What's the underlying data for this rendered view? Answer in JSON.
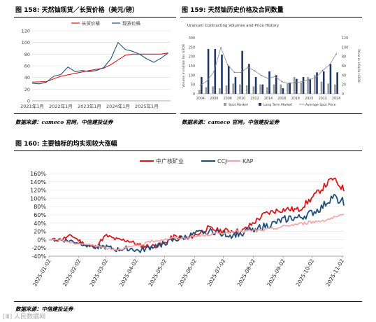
{
  "colors": {
    "red": "#d7191c",
    "darkblue": "#1f4e79",
    "pink": "#f4a3a8",
    "navy": "#1f3864",
    "gray": "#999999"
  },
  "fig158": {
    "title": "图 158: 天然铀现货／长贸价格（美元/磅）",
    "source": "数据来源：cameco 官网，中信建投证券"
  },
  "fig159": {
    "title": "图 159: 天然铀历史价格及合同数量",
    "source": "数据来源：cameco 官网，中信建投证券"
  },
  "fig160": {
    "title": "图 160: 主要铀标的均实现较大涨幅",
    "source": "数据来源：中信建投证券"
  },
  "watermark": "[Ⅲ] 人民数据网",
  "chart_data": [
    {
      "type": "line",
      "title": "",
      "series": [
        {
          "name": "长贸价格",
          "color": "#d7191c",
          "x": [
            "2021-01",
            "2021-07",
            "2022-01",
            "2022-07",
            "2023-01",
            "2023-07",
            "2023-10",
            "2024-01",
            "2024-04",
            "2024-07",
            "2024-10",
            "2025-01",
            "2025-04",
            "2025-07",
            "2025-10"
          ],
          "values": [
            32,
            33,
            42,
            47,
            52,
            56,
            62,
            70,
            78,
            80,
            80,
            80,
            80,
            80,
            82
          ]
        },
        {
          "name": "现货价格",
          "color": "#1f4e79",
          "x": [
            "2021-01",
            "2021-04",
            "2021-07",
            "2021-10",
            "2022-01",
            "2022-04",
            "2022-07",
            "2022-10",
            "2023-01",
            "2023-04",
            "2023-07",
            "2023-10",
            "2024-01",
            "2024-04",
            "2024-07",
            "2024-10",
            "2025-01",
            "2025-04",
            "2025-07",
            "2025-10"
          ],
          "values": [
            30,
            29,
            32,
            42,
            45,
            58,
            50,
            52,
            50,
            52,
            57,
            72,
            100,
            88,
            85,
            80,
            72,
            66,
            73,
            82
          ]
        }
      ],
      "xticks": [
        "2021年1月",
        "2022年1月",
        "2023年1月",
        "2024年1月",
        "2025年1月"
      ],
      "ylim": [
        0,
        120
      ],
      "yticks": [
        0,
        20,
        40,
        60,
        80,
        100,
        120
      ],
      "grid": true,
      "legend": "top"
    },
    {
      "type": "bar",
      "title": "Uranium Contracting Volumes and Price History",
      "ylabel": "Volume in million lbs U3O8",
      "y2label": "Price in US$/lb U3O8",
      "categories": [
        "2004",
        "2005",
        "2006",
        "2007",
        "2008",
        "2009",
        "2010",
        "2011",
        "2012",
        "2013",
        "2014",
        "2015",
        "2016",
        "2017",
        "2018",
        "2019",
        "2020",
        "2021",
        "2022",
        "2023",
        "2024"
      ],
      "xticks": [
        "2004",
        "2006",
        "2008",
        "2010",
        "2012",
        "2014",
        "2016",
        "2018",
        "2020",
        "2022",
        "2024"
      ],
      "series": [
        {
          "name": "Spot Market",
          "color": "#999999",
          "values": [
            20,
            35,
            40,
            30,
            45,
            55,
            50,
            45,
            40,
            50,
            35,
            50,
            50,
            55,
            90,
            60,
            90,
            100,
            65,
            55,
            50
          ]
        },
        {
          "name": "Long Term Market",
          "color": "#1f3864",
          "values": [
            90,
            240,
            240,
            210,
            150,
            90,
            230,
            160,
            90,
            50,
            120,
            100,
            30,
            60,
            80,
            90,
            80,
            115,
            120,
            160,
            115
          ]
        },
        {
          "name": "Average Spot Price",
          "color": "#888888",
          "values": [
            18,
            28,
            48,
            99,
            62,
            46,
            46,
            57,
            49,
            39,
            33,
            37,
            26,
            22,
            24,
            26,
            30,
            35,
            50,
            62,
            85
          ]
        }
      ],
      "ylim": [
        0,
        300
      ],
      "y2lim": [
        0,
        120
      ],
      "yticks": [
        0,
        50,
        100,
        150,
        200,
        250,
        300
      ],
      "y2ticks": [
        0,
        20,
        40,
        60,
        80,
        100,
        120
      ],
      "legend": "bottom"
    },
    {
      "type": "line",
      "title": "",
      "series": [
        {
          "name": "中广核矿业",
          "color": "#d7191c"
        },
        {
          "name": "CCJ",
          "color": "#1f4e79"
        },
        {
          "name": "KAP",
          "color": "#f4a3a8"
        }
      ],
      "x_start": "2025-01-02",
      "x_end": "2025-11-04",
      "xticks": [
        "2025-01-02",
        "2025-02-02",
        "2025-03-02",
        "2025-04-02",
        "2025-05-02",
        "2025-06-02",
        "2025-07-02",
        "2025-08-02",
        "2025-09-02",
        "2025-10-02",
        "2025-11-02"
      ],
      "ylim": [
        -40,
        160
      ],
      "yticks": [
        "-40%",
        "-20%",
        "0%",
        "20%",
        "40%",
        "60%",
        "80%",
        "100%",
        "120%",
        "140%",
        "160%"
      ],
      "grid": true,
      "legend": "top"
    }
  ]
}
